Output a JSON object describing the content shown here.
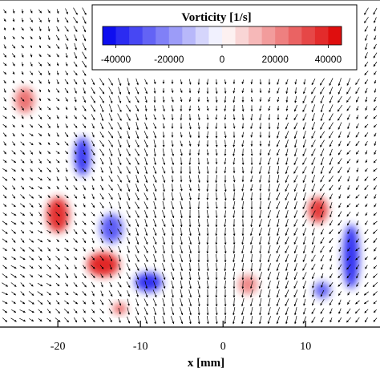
{
  "chart_data": {
    "type": "heatmap",
    "title": "",
    "xlabel": "x [mm]",
    "ylabel": "",
    "xlim": [
      -27,
      19
    ],
    "x_ticks": [
      -20,
      -10,
      0,
      10
    ],
    "x_tick_labels": [
      "-20",
      "-10",
      "0",
      "10"
    ],
    "colorbar": {
      "label": "Vorticity [1/s]",
      "range": [
        -45000,
        45000
      ],
      "levels": 18,
      "ticks": [
        -40000,
        -20000,
        0,
        20000,
        40000
      ],
      "tick_labels": [
        "-40000",
        "-20000",
        "0",
        "20000",
        "40000"
      ],
      "negative_color": "#0000ee",
      "zero_color": "#ffffff",
      "positive_color": "#dd0000"
    },
    "overlay": "velocity vector field (quiver arrows)",
    "vortex_regions": [
      {
        "x": -20.0,
        "value": 38000
      },
      {
        "x": -14.5,
        "value": 40000
      },
      {
        "x": -12.5,
        "value": 34000
      },
      {
        "x": -17.0,
        "value": -36000
      },
      {
        "x": -13.5,
        "value": -30000
      },
      {
        "x": -9.0,
        "value": -38000
      },
      {
        "x": -24.0,
        "value": 26000
      },
      {
        "x": 11.5,
        "value": 36000
      },
      {
        "x": 15.5,
        "value": -38000
      },
      {
        "x": 12.0,
        "value": -30000
      },
      {
        "x": 3.0,
        "value": 22000
      }
    ]
  }
}
